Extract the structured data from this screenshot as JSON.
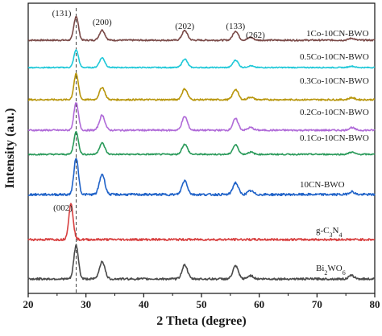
{
  "chart_data": {
    "type": "line",
    "xlabel": "2 Theta (degree)",
    "ylabel": "Intensity (a.u.)",
    "xlim": [
      20,
      80
    ],
    "x_ticks": [
      "20",
      "30",
      "40",
      "50",
      "60",
      "70",
      "80"
    ],
    "grid": false,
    "legend": "inline labels at right of each curve",
    "reference_line_x": 28.3,
    "peak_labels": [
      {
        "text": "(131)",
        "x": 28.3
      },
      {
        "text": "(200)",
        "x": 32.8
      },
      {
        "text": "(202)",
        "x": 47.1
      },
      {
        "text": "(133)",
        "x": 55.9
      },
      {
        "text": "(262)",
        "x": 58.5
      },
      {
        "text": "(002)",
        "x": 27.4
      }
    ],
    "series": [
      {
        "name": "1Co-10CN-BWO",
        "color": "#7a4a48",
        "peaks": [
          [
            28.3,
            1.0
          ],
          [
            32.8,
            0.42
          ],
          [
            47.1,
            0.4
          ],
          [
            55.9,
            0.38
          ],
          [
            58.5,
            0.12
          ],
          [
            76.0,
            0.08
          ]
        ]
      },
      {
        "name": "0.5Co-10CN-BWO",
        "color": "#1fc8d8",
        "peaks": [
          [
            28.3,
            1.0
          ],
          [
            32.8,
            0.55
          ],
          [
            47.1,
            0.48
          ],
          [
            55.9,
            0.42
          ],
          [
            58.5,
            0.1
          ],
          [
            76.0,
            0.08
          ]
        ]
      },
      {
        "name": "0.3Co-10CN-BWO",
        "color": "#b8960c",
        "peaks": [
          [
            28.3,
            1.0
          ],
          [
            32.8,
            0.48
          ],
          [
            47.1,
            0.42
          ],
          [
            55.9,
            0.4
          ],
          [
            58.5,
            0.1
          ],
          [
            76.0,
            0.08
          ]
        ]
      },
      {
        "name": "0.2Co-10CN-BWO",
        "color": "#b06bd8",
        "peaks": [
          [
            28.3,
            1.0
          ],
          [
            32.8,
            0.55
          ],
          [
            47.1,
            0.5
          ],
          [
            55.9,
            0.42
          ],
          [
            58.5,
            0.1
          ],
          [
            76.0,
            0.1
          ]
        ]
      },
      {
        "name": "0.1Co-10CN-BWO",
        "color": "#2a9a5a",
        "peaks": [
          [
            28.3,
            1.0
          ],
          [
            32.8,
            0.5
          ],
          [
            47.1,
            0.45
          ],
          [
            55.9,
            0.42
          ],
          [
            58.5,
            0.1
          ],
          [
            76.0,
            0.1
          ]
        ]
      },
      {
        "name": "10CN-BWO",
        "color": "#1f62c8",
        "peaks": [
          [
            28.3,
            1.0
          ],
          [
            32.8,
            0.55
          ],
          [
            47.1,
            0.38
          ],
          [
            55.9,
            0.32
          ],
          [
            58.5,
            0.1
          ],
          [
            76.0,
            0.08
          ]
        ]
      },
      {
        "name": "g-C3N4",
        "color": "#d84040",
        "peaks": [
          [
            27.4,
            1.0
          ],
          [
            13.0,
            0.05
          ]
        ]
      },
      {
        "name": "Bi2WO6",
        "color": "#4a4a4a",
        "peaks": [
          [
            28.3,
            1.0
          ],
          [
            32.8,
            0.52
          ],
          [
            47.1,
            0.42
          ],
          [
            55.9,
            0.38
          ],
          [
            58.5,
            0.1
          ],
          [
            76.0,
            0.1
          ]
        ]
      }
    ]
  }
}
